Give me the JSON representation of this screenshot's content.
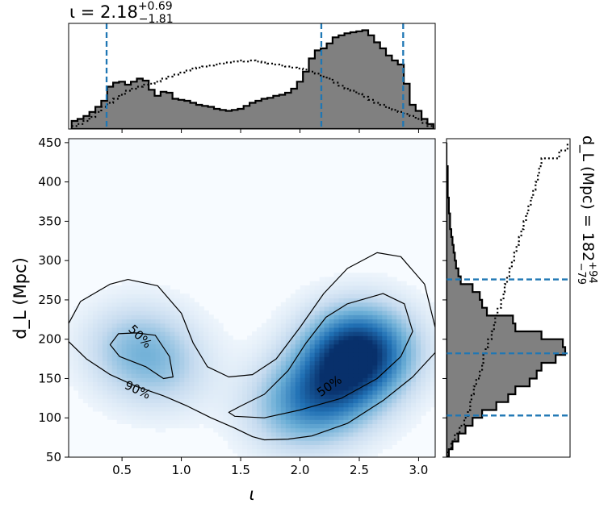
{
  "chart_data": [
    {
      "panel": "top-marginal",
      "type": "histogram",
      "title_base": "ι = 2.18",
      "title_sup": "+0.69",
      "title_sub": "−1.81",
      "xlim": [
        0.05,
        3.14
      ],
      "credible_interval_lines": [
        0.37,
        2.18,
        2.87
      ],
      "bin_centers": [
        0.1,
        0.15,
        0.2,
        0.25,
        0.3,
        0.35,
        0.4,
        0.45,
        0.5,
        0.55,
        0.6,
        0.65,
        0.7,
        0.75,
        0.8,
        0.85,
        0.9,
        0.95,
        1.0,
        1.05,
        1.1,
        1.15,
        1.2,
        1.25,
        1.3,
        1.35,
        1.4,
        1.45,
        1.5,
        1.55,
        1.6,
        1.65,
        1.7,
        1.75,
        1.8,
        1.85,
        1.9,
        1.95,
        2.0,
        2.05,
        2.1,
        2.15,
        2.2,
        2.25,
        2.3,
        2.35,
        2.4,
        2.45,
        2.5,
        2.55,
        2.6,
        2.65,
        2.7,
        2.75,
        2.8,
        2.85,
        2.9,
        2.95,
        3.0,
        3.05,
        3.1
      ],
      "series": [
        {
          "label_style": "filled-solid",
          "values": [
            0.08,
            0.1,
            0.13,
            0.17,
            0.22,
            0.28,
            0.42,
            0.46,
            0.47,
            0.44,
            0.47,
            0.5,
            0.48,
            0.39,
            0.33,
            0.37,
            0.36,
            0.3,
            0.29,
            0.28,
            0.26,
            0.24,
            0.23,
            0.22,
            0.2,
            0.19,
            0.18,
            0.19,
            0.2,
            0.23,
            0.26,
            0.28,
            0.3,
            0.31,
            0.33,
            0.34,
            0.36,
            0.4,
            0.47,
            0.57,
            0.7,
            0.78,
            0.8,
            0.85,
            0.91,
            0.93,
            0.95,
            0.96,
            0.97,
            0.98,
            0.93,
            0.86,
            0.8,
            0.73,
            0.68,
            0.64,
            0.45,
            0.24,
            0.18,
            0.1,
            0.05
          ]
        },
        {
          "label_style": "dotted",
          "values": [
            0.03,
            0.05,
            0.08,
            0.12,
            0.17,
            0.22,
            0.26,
            0.3,
            0.34,
            0.38,
            0.4,
            0.42,
            0.44,
            0.45,
            0.47,
            0.5,
            0.52,
            0.54,
            0.56,
            0.58,
            0.6,
            0.61,
            0.62,
            0.63,
            0.64,
            0.65,
            0.66,
            0.67,
            0.68,
            0.67,
            0.68,
            0.67,
            0.66,
            0.65,
            0.64,
            0.63,
            0.62,
            0.61,
            0.6,
            0.59,
            0.57,
            0.55,
            0.52,
            0.5,
            0.46,
            0.43,
            0.4,
            0.38,
            0.35,
            0.32,
            0.29,
            0.26,
            0.24,
            0.21,
            0.19,
            0.17,
            0.15,
            0.13,
            0.1,
            0.06,
            0.03
          ]
        }
      ]
    },
    {
      "panel": "joint",
      "type": "heatmap",
      "xlabel": "ι",
      "ylabel": "d_L (Mpc)",
      "xlim": [
        0.05,
        3.14
      ],
      "ylim": [
        50,
        455
      ],
      "xticks": [
        0.5,
        1.0,
        1.5,
        2.0,
        2.5,
        3.0
      ],
      "xtick_labels": [
        "0.5",
        "1.0",
        "1.5",
        "2.0",
        "2.5",
        "3.0"
      ],
      "yticks": [
        50,
        100,
        150,
        200,
        250,
        300,
        350,
        400,
        450
      ],
      "ytick_labels": [
        "50",
        "100",
        "150",
        "200",
        "250",
        "300",
        "350",
        "400",
        "450"
      ],
      "colormap": [
        "#f7fbff",
        "#c6dbef",
        "#6baed6",
        "#2171b5",
        "#08306b"
      ],
      "density_peaks": [
        {
          "iota": 2.5,
          "dL": 185,
          "weight": 1.0
        },
        {
          "iota": 2.25,
          "dL": 135,
          "weight": 0.55
        },
        {
          "iota": 1.95,
          "dL": 110,
          "weight": 0.3
        },
        {
          "iota": 0.62,
          "dL": 190,
          "weight": 0.3
        },
        {
          "iota": 0.85,
          "dL": 160,
          "weight": 0.18
        }
      ],
      "contours": [
        {
          "label": "50%",
          "label_positions": [
            {
              "iota": 0.65,
              "dL": 203,
              "angle": 45
            },
            {
              "iota": 2.25,
              "dL": 140,
              "angle": -35
            }
          ],
          "paths": [
            [
              [
                0.62,
                208
              ],
              [
                0.47,
                207
              ],
              [
                0.4,
                193
              ],
              [
                0.48,
                178
              ],
              [
                0.7,
                165
              ],
              [
                0.85,
                150
              ],
              [
                0.93,
                152
              ],
              [
                0.9,
                178
              ],
              [
                0.78,
                205
              ],
              [
                0.62,
                208
              ]
            ],
            [
              [
                2.4,
                245
              ],
              [
                2.22,
                228
              ],
              [
                2.05,
                195
              ],
              [
                1.9,
                160
              ],
              [
                1.7,
                130
              ],
              [
                1.5,
                115
              ],
              [
                1.4,
                107
              ],
              [
                1.45,
                102
              ],
              [
                1.7,
                100
              ],
              [
                2.0,
                110
              ],
              [
                2.35,
                125
              ],
              [
                2.65,
                150
              ],
              [
                2.85,
                178
              ],
              [
                2.95,
                210
              ],
              [
                2.88,
                245
              ],
              [
                2.7,
                258
              ],
              [
                2.4,
                245
              ]
            ]
          ]
        },
        {
          "label": "90%",
          "label_positions": [
            {
              "iota": 0.63,
              "dL": 135,
              "angle": 25
            }
          ],
          "paths": [
            [
              [
                0.55,
                276
              ],
              [
                0.4,
                270
              ],
              [
                0.15,
                248
              ],
              [
                0.05,
                220
              ],
              [
                0.05,
                197
              ],
              [
                0.2,
                175
              ],
              [
                0.4,
                155
              ],
              [
                0.62,
                140
              ],
              [
                0.85,
                128
              ],
              [
                1.05,
                115
              ],
              [
                1.25,
                100
              ],
              [
                1.45,
                87
              ],
              [
                1.6,
                76
              ],
              [
                1.7,
                72
              ],
              [
                1.9,
                73
              ],
              [
                2.1,
                77
              ],
              [
                2.4,
                93
              ],
              [
                2.7,
                122
              ],
              [
                2.95,
                152
              ],
              [
                3.14,
                183
              ],
              [
                3.14,
                215
              ],
              [
                3.05,
                270
              ],
              [
                2.85,
                305
              ],
              [
                2.65,
                310
              ],
              [
                2.4,
                290
              ],
              [
                2.2,
                258
              ],
              [
                2.0,
                215
              ],
              [
                1.8,
                175
              ],
              [
                1.6,
                155
              ],
              [
                1.4,
                152
              ],
              [
                1.22,
                165
              ],
              [
                1.1,
                195
              ],
              [
                1.0,
                233
              ],
              [
                0.8,
                268
              ],
              [
                0.55,
                276
              ]
            ]
          ]
        }
      ]
    },
    {
      "panel": "right-marginal",
      "type": "histogram",
      "orientation": "horizontal",
      "label_base": "d_L (Mpc) = 182",
      "label_sup": "+94",
      "label_sub": "−79",
      "ylim": [
        50,
        455
      ],
      "credible_interval_lines": [
        103,
        182,
        276
      ],
      "bin_centers": [
        55,
        65,
        75,
        85,
        95,
        105,
        115,
        125,
        135,
        145,
        155,
        165,
        175,
        185,
        195,
        205,
        215,
        225,
        235,
        245,
        255,
        265,
        275,
        285,
        295,
        305,
        315,
        325,
        335,
        345,
        355,
        365,
        375,
        385,
        395,
        405,
        415,
        425,
        435,
        445
      ],
      "series": [
        {
          "label_style": "filled-solid",
          "values": [
            0.02,
            0.05,
            0.1,
            0.16,
            0.22,
            0.3,
            0.42,
            0.52,
            0.58,
            0.7,
            0.76,
            0.8,
            0.92,
            1.0,
            0.98,
            0.8,
            0.58,
            0.56,
            0.34,
            0.3,
            0.28,
            0.22,
            0.12,
            0.1,
            0.08,
            0.07,
            0.06,
            0.05,
            0.04,
            0.03,
            0.03,
            0.02,
            0.02,
            0.01,
            0.01,
            0.01,
            0.01,
            0.0,
            0.0,
            0.0
          ]
        },
        {
          "label_style": "dotted",
          "values": [
            0.01,
            0.04,
            0.07,
            0.11,
            0.15,
            0.18,
            0.2,
            0.21,
            0.23,
            0.25,
            0.28,
            0.3,
            0.31,
            0.33,
            0.35,
            0.38,
            0.4,
            0.41,
            0.43,
            0.46,
            0.48,
            0.49,
            0.51,
            0.53,
            0.55,
            0.57,
            0.59,
            0.61,
            0.63,
            0.65,
            0.67,
            0.69,
            0.71,
            0.73,
            0.75,
            0.77,
            0.78,
            0.8,
            0.95,
            1.02
          ]
        }
      ]
    }
  ]
}
